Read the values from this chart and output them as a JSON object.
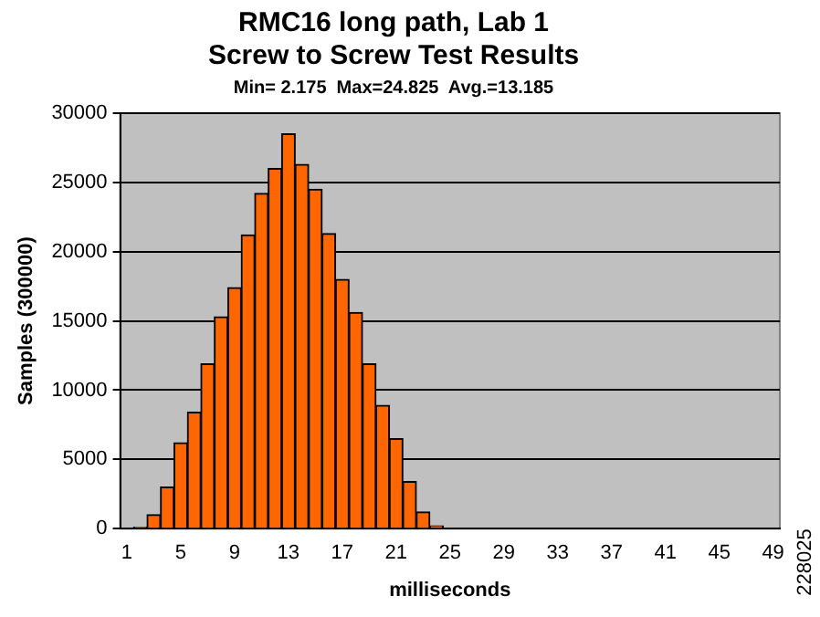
{
  "chart_data": {
    "type": "bar",
    "title": "RMC16 long path, Lab 1\nScrew to Screw Test Results",
    "subtitle": "Min= 2.175  Max=24.825  Avg.=13.185",
    "xlabel": "milliseconds",
    "ylabel": "Samples (300000)",
    "categories": [
      "1",
      null,
      null,
      null,
      "5",
      null,
      null,
      null,
      "9",
      null,
      null,
      null,
      "13",
      null,
      null,
      null,
      "17",
      null,
      null,
      null,
      "21",
      null,
      null,
      null,
      "25",
      null,
      null,
      null,
      "29",
      null,
      null,
      null,
      "33",
      null,
      null,
      null,
      "37",
      null,
      null,
      null,
      "41",
      null,
      null,
      null,
      "45",
      null,
      null,
      null,
      "49"
    ],
    "values": [
      0,
      100,
      1000,
      3000,
      6200,
      8400,
      11900,
      15300,
      17400,
      21200,
      24200,
      26000,
      28500,
      26300,
      24500,
      21300,
      18000,
      15600,
      11900,
      8900,
      6500,
      3400,
      1200,
      200,
      0,
      0,
      0,
      0,
      0,
      0,
      0,
      0,
      0,
      0,
      0,
      0,
      0,
      0,
      0,
      0,
      0,
      0,
      0,
      0,
      0,
      0,
      0,
      0,
      0
    ],
    "color": "#ff6600",
    "ylim": [
      0,
      30000
    ],
    "yticks": [
      0,
      5000,
      10000,
      15000,
      20000,
      25000,
      30000
    ],
    "grid": "y",
    "legend": false,
    "annotations": [
      "228025"
    ]
  }
}
